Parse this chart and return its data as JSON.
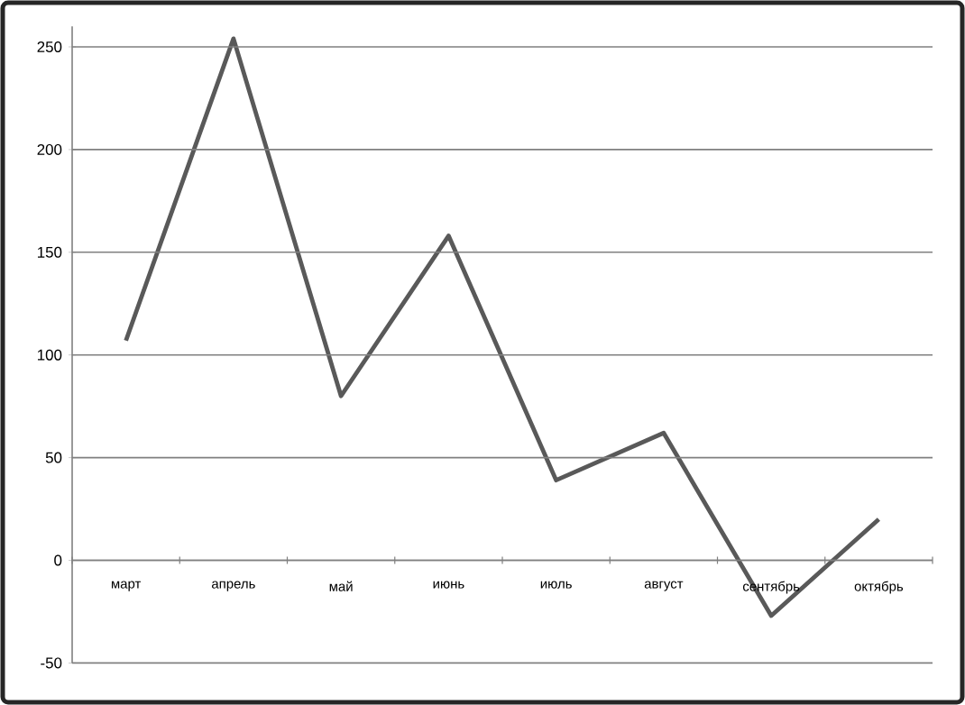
{
  "chart_data": {
    "type": "line",
    "categories": [
      "март",
      "апрель",
      "май",
      "июнь",
      "июль",
      "август",
      "сентябрь",
      "октябрь"
    ],
    "series": [
      {
        "color": "#595959",
        "values": [
          107,
          254,
          80,
          158,
          39,
          62,
          -27,
          20
        ]
      }
    ],
    "ylim": [
      -50,
      260
    ],
    "yticks": [
      -50,
      0,
      50,
      100,
      150,
      200,
      250
    ],
    "grid": "y",
    "marker": "none",
    "line_style": "solid"
  }
}
